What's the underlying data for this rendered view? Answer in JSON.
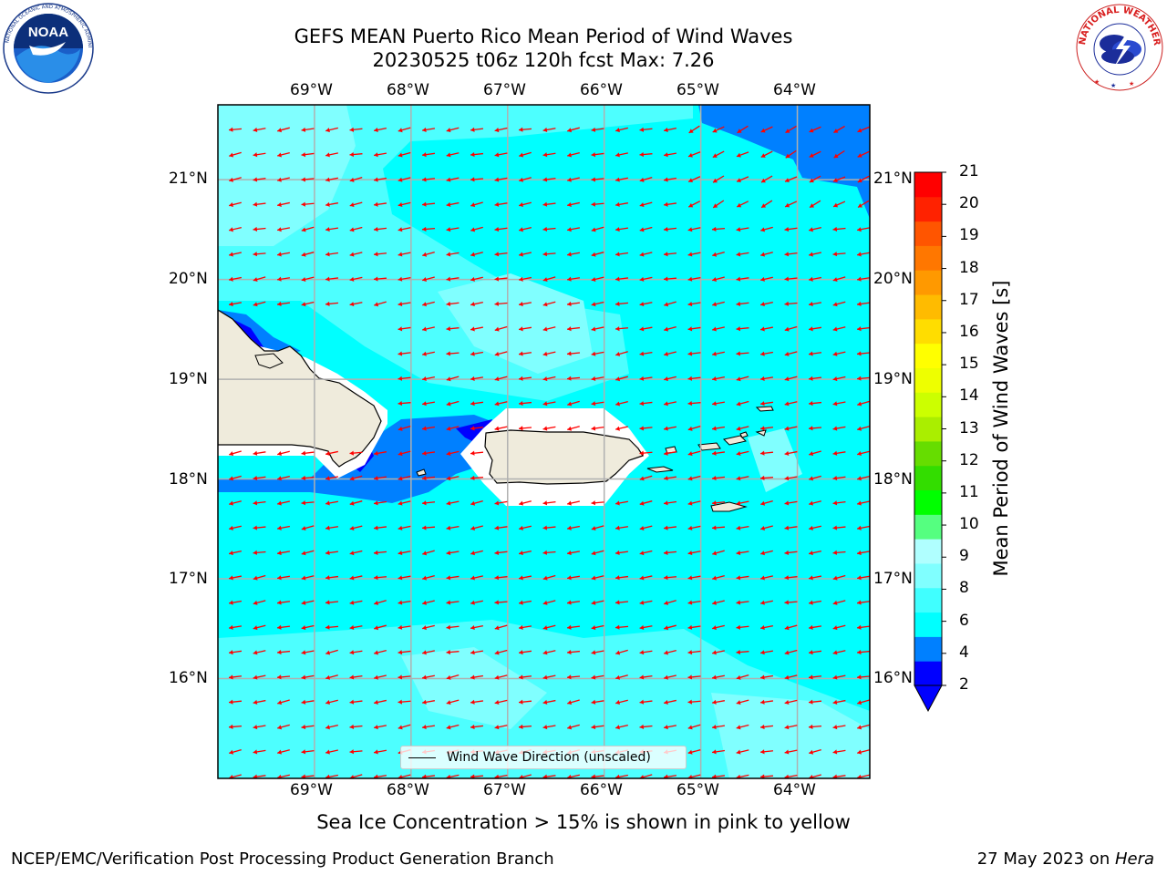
{
  "title": {
    "line1": "GEFS MEAN Puerto Rico Mean Period of Wind Waves",
    "line2": "20230525 t06z 120h fcst   Max: 7.26"
  },
  "map": {
    "lon_labels": [
      "69°W",
      "68°W",
      "67°W",
      "66°W",
      "65°W",
      "64°W"
    ],
    "lat_labels": [
      "21°N",
      "20°N",
      "19°N",
      "18°N",
      "17°N",
      "16°N"
    ],
    "lon_range": [
      -70.0,
      -63.25
    ],
    "lat_range": [
      15.0,
      21.75
    ],
    "projection": "plate-carree",
    "gridlines": true,
    "background_fill_color": "#00ffff",
    "land_color": "#efebdc",
    "arrow_color": "#ff0000",
    "arrow_direction": "southwest (towards ~W-SW)"
  },
  "colorbar": {
    "label": "Mean Period of Wind Waves [s]",
    "ticks": [
      "21",
      "20",
      "19",
      "18",
      "17",
      "16",
      "15",
      "14",
      "13",
      "12",
      "11",
      "10",
      "9",
      "8",
      "6",
      "4",
      "2"
    ],
    "extend": "min",
    "colors": [
      "#0000ff",
      "#0080ff",
      "#00ffff",
      "#40ffff",
      "#80ffff",
      "#b0ffff",
      "#55ff80",
      "#00ff00",
      "#33dd00",
      "#66dd00",
      "#aaee00",
      "#ccff00",
      "#eeff00",
      "#ffff00",
      "#ffdd00",
      "#ffbb00",
      "#ff9900",
      "#ff7700",
      "#ff5500",
      "#ff2200",
      "#ff0000"
    ]
  },
  "legend": {
    "label": "Wind Wave Direction (unscaled)"
  },
  "sea_ice_note": "Sea Ice Concentration > 15% is shown in pink to yellow",
  "footer": {
    "left": "NCEP/EMC/Verification Post Processing Product Generation Branch",
    "right_date": "27 May 2023 on ",
    "right_host": "Hera"
  },
  "logos": {
    "noaa_text": "NOAA",
    "nws_text": "NATIONAL WEATHER SERVICE",
    "noaa_ring_text": "NATIONAL OCEANIC AND ATMOSPHERIC ADMINISTRATION"
  }
}
